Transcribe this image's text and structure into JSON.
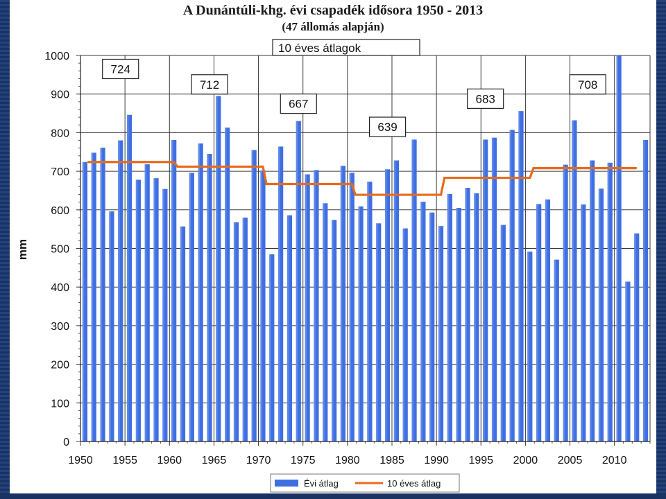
{
  "chart_data": {
    "type": "bar",
    "title": "A Dunántúli-khg. évi csapadék idősora 1950 - 2013",
    "subtitle": "(47 állomás alapján)",
    "ylabel": "mm",
    "xlabel": "",
    "ylim": [
      0,
      1000
    ],
    "yticks": [
      0,
      100,
      200,
      300,
      400,
      500,
      600,
      700,
      800,
      900,
      1000
    ],
    "xlim": [
      1950,
      2014
    ],
    "xticks": [
      1950,
      1955,
      1960,
      1965,
      1970,
      1975,
      1980,
      1985,
      1990,
      1995,
      2000,
      2005,
      2010
    ],
    "grid": "both",
    "legend_position": "bottom",
    "colors": {
      "bars": "#3f6fe0",
      "line": "#e86a1a"
    },
    "series": [
      {
        "name": "Évi átlag",
        "kind": "bar",
        "x": [
          1950,
          1951,
          1952,
          1953,
          1954,
          1955,
          1956,
          1957,
          1958,
          1959,
          1960,
          1961,
          1962,
          1963,
          1964,
          1965,
          1966,
          1967,
          1968,
          1969,
          1970,
          1971,
          1972,
          1973,
          1974,
          1975,
          1976,
          1977,
          1978,
          1979,
          1980,
          1981,
          1982,
          1983,
          1984,
          1985,
          1986,
          1987,
          1988,
          1989,
          1990,
          1991,
          1992,
          1993,
          1994,
          1995,
          1996,
          1997,
          1998,
          1999,
          2000,
          2001,
          2002,
          2003,
          2004,
          2005,
          2006,
          2007,
          2008,
          2009,
          2010,
          2011,
          2012,
          2013
        ],
        "values": [
          724,
          748,
          761,
          596,
          780,
          846,
          678,
          718,
          682,
          654,
          781,
          557,
          696,
          772,
          745,
          895,
          813,
          568,
          580,
          755,
          702,
          485,
          764,
          586,
          830,
          692,
          703,
          617,
          574,
          714,
          696,
          609,
          673,
          565,
          705,
          728,
          552,
          782,
          621,
          593,
          558,
          641,
          605,
          657,
          643,
          782,
          787,
          561,
          807,
          856,
          492,
          615,
          627,
          471,
          717,
          832,
          614,
          728,
          655,
          722,
          1010,
          414,
          539,
          781
        ]
      },
      {
        "name": "10 éves átlag",
        "kind": "step",
        "segments": [
          {
            "from": 1950,
            "to": 1960,
            "value": 724
          },
          {
            "from": 1960,
            "to": 1970,
            "value": 712
          },
          {
            "from": 1970,
            "to": 1980,
            "value": 667
          },
          {
            "from": 1980,
            "to": 1990,
            "value": 639
          },
          {
            "from": 1990,
            "to": 2000,
            "value": 683
          },
          {
            "from": 2000,
            "to": 2012,
            "value": 708
          }
        ]
      }
    ],
    "annotations": [
      {
        "text": "724",
        "x": 1954.5,
        "y": 965
      },
      {
        "text": "712",
        "x": 1964.5,
        "y": 925
      },
      {
        "text": "667",
        "x": 1974.5,
        "y": 875
      },
      {
        "text": "639",
        "x": 1984.5,
        "y": 815
      },
      {
        "text": "683",
        "x": 1995.5,
        "y": 888
      },
      {
        "text": "708",
        "x": 2007,
        "y": 925
      }
    ],
    "annotation_header": "10 éves átlagok"
  }
}
